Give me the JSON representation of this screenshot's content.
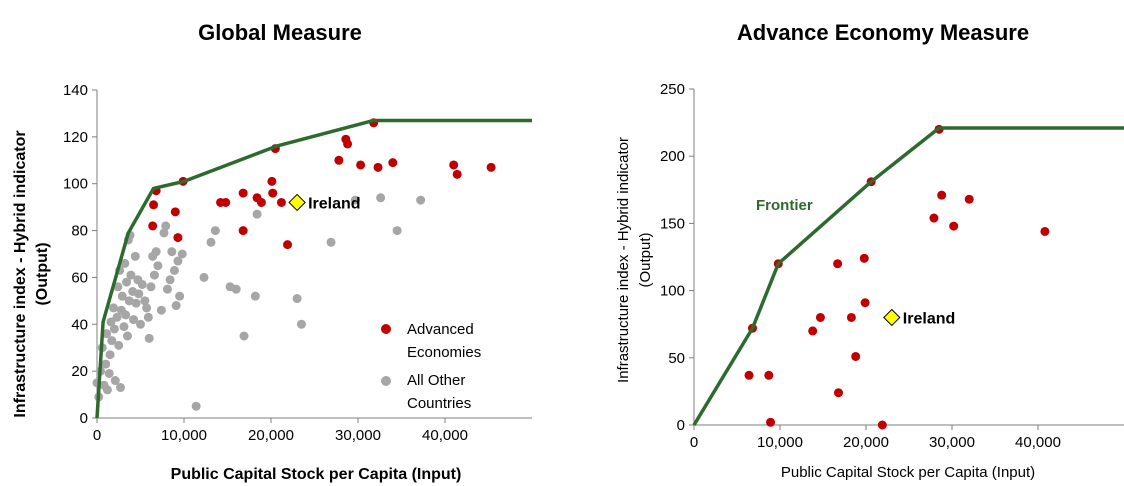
{
  "colors": {
    "advanced": "#c00000",
    "others": "#a6a6a6",
    "frontier": "#2d6a2d",
    "ireland": "#ffff00",
    "axis": "#7f7f7f"
  },
  "chart_data": [
    {
      "type": "scatter",
      "title": "Global Measure",
      "xlabel": "Public Capital Stock per Capita (Input)",
      "ylabel": "Infrastructure index - Hybrid indicator (Output)",
      "xlim": [
        0,
        50000
      ],
      "ylim": [
        0,
        140
      ],
      "xticks": [
        0,
        10000,
        20000,
        30000,
        40000
      ],
      "xtick_labels": [
        "0",
        "10,000",
        "20,000",
        "30,000",
        "40,000"
      ],
      "yticks": [
        0,
        20,
        40,
        60,
        80,
        100,
        120,
        140
      ],
      "ytick_labels": [
        "0",
        "20",
        "40",
        "60",
        "80",
        "100",
        "120",
        "140"
      ],
      "grid": false,
      "legend_position": "bottom-right",
      "series": [
        {
          "name": "Advanced Economies",
          "marker": "circle",
          "color": "#c00000",
          "legend_label": [
            "Advanced",
            "Economies"
          ],
          "points": [
            [
              6500,
              91
            ],
            [
              6800,
              97
            ],
            [
              6400,
              82
            ],
            [
              9000,
              88
            ],
            [
              9300,
              77
            ],
            [
              9900,
              101
            ],
            [
              14200,
              92
            ],
            [
              14800,
              92
            ],
            [
              16800,
              96
            ],
            [
              16800,
              80
            ],
            [
              18400,
              94
            ],
            [
              18900,
              92
            ],
            [
              20100,
              101
            ],
            [
              20200,
              96
            ],
            [
              20500,
              115
            ],
            [
              21200,
              92
            ],
            [
              21900,
              74
            ],
            [
              27800,
              110
            ],
            [
              28600,
              119
            ],
            [
              28800,
              117
            ],
            [
              30300,
              108
            ],
            [
              31800,
              126
            ],
            [
              32300,
              107
            ],
            [
              34000,
              109
            ],
            [
              41000,
              108
            ],
            [
              41400,
              104
            ],
            [
              45300,
              107
            ]
          ]
        },
        {
          "name": "All Other Countries",
          "marker": "circle",
          "color": "#a6a6a6",
          "legend_label": [
            "All Other",
            "Countries"
          ],
          "points": [
            [
              0,
              15
            ],
            [
              200,
              9
            ],
            [
              400,
              20
            ],
            [
              600,
              30
            ],
            [
              800,
              14
            ],
            [
              1000,
              23
            ],
            [
              1100,
              36
            ],
            [
              1200,
              12
            ],
            [
              1400,
              19
            ],
            [
              1500,
              27
            ],
            [
              1600,
              41
            ],
            [
              1700,
              33
            ],
            [
              1900,
              47
            ],
            [
              2000,
              38
            ],
            [
              2100,
              16
            ],
            [
              2300,
              43
            ],
            [
              2400,
              56
            ],
            [
              2500,
              31
            ],
            [
              2600,
              63
            ],
            [
              2700,
              13
            ],
            [
              2800,
              46
            ],
            [
              2900,
              52
            ],
            [
              3100,
              39
            ],
            [
              3200,
              66
            ],
            [
              3300,
              44
            ],
            [
              3400,
              58
            ],
            [
              3500,
              35
            ],
            [
              3600,
              76
            ],
            [
              3700,
              50
            ],
            [
              3800,
              78
            ],
            [
              3900,
              61
            ],
            [
              4100,
              54
            ],
            [
              4200,
              42
            ],
            [
              4400,
              69
            ],
            [
              4500,
              49
            ],
            [
              4700,
              59
            ],
            [
              4800,
              53
            ],
            [
              5000,
              40
            ],
            [
              5200,
              57
            ],
            [
              5500,
              50
            ],
            [
              5700,
              47
            ],
            [
              5900,
              43
            ],
            [
              6000,
              34
            ],
            [
              6200,
              56
            ],
            [
              6400,
              69
            ],
            [
              6600,
              61
            ],
            [
              6800,
              71
            ],
            [
              7000,
              65
            ],
            [
              7400,
              46
            ],
            [
              7700,
              79
            ],
            [
              7900,
              82
            ],
            [
              8100,
              55
            ],
            [
              8400,
              59
            ],
            [
              8600,
              71
            ],
            [
              8900,
              63
            ],
            [
              9100,
              48
            ],
            [
              9300,
              67
            ],
            [
              9500,
              52
            ],
            [
              9800,
              70
            ],
            [
              11400,
              5
            ],
            [
              12300,
              60
            ],
            [
              13100,
              75
            ],
            [
              13600,
              80
            ],
            [
              15300,
              56
            ],
            [
              16000,
              55
            ],
            [
              16900,
              35
            ],
            [
              18200,
              52
            ],
            [
              18400,
              87
            ],
            [
              23000,
              51
            ],
            [
              23500,
              40
            ],
            [
              26900,
              75
            ],
            [
              29700,
              93
            ],
            [
              32600,
              94
            ],
            [
              34500,
              80
            ],
            [
              37200,
              93
            ]
          ]
        }
      ],
      "frontier": [
        [
          0,
          0
        ],
        [
          700,
          41
        ],
        [
          3600,
          79
        ],
        [
          6500,
          98
        ],
        [
          10000,
          101
        ],
        [
          20600,
          116
        ],
        [
          31800,
          127
        ],
        [
          50000,
          127
        ]
      ],
      "annotations": [
        {
          "label": "Ireland",
          "x": 23000,
          "y": 92,
          "marker": "diamond"
        }
      ]
    },
    {
      "type": "scatter",
      "title": "Advance Economy Measure",
      "xlabel": "Public Capital Stock per Capita (Input)",
      "ylabel": "Infrastructure index - Hybrid indicator (Output)",
      "xlim": [
        0,
        50000
      ],
      "ylim": [
        0,
        250
      ],
      "xticks": [
        0,
        10000,
        20000,
        30000,
        40000
      ],
      "xtick_labels": [
        "0",
        "10,000",
        "20,000",
        "30,000",
        "40,000"
      ],
      "yticks": [
        0,
        50,
        100,
        150,
        200,
        250
      ],
      "ytick_labels": [
        "0",
        "50",
        "100",
        "150",
        "200",
        "250"
      ],
      "grid": false,
      "series": [
        {
          "marker": "circle",
          "color": "#c00000",
          "points": [
            [
              6400,
              37
            ],
            [
              6800,
              72
            ],
            [
              8700,
              37
            ],
            [
              8900,
              2
            ],
            [
              9800,
              120
            ],
            [
              13800,
              70
            ],
            [
              14700,
              80
            ],
            [
              16700,
              120
            ],
            [
              16800,
              24
            ],
            [
              18300,
              80
            ],
            [
              18800,
              51
            ],
            [
              19800,
              124
            ],
            [
              19900,
              91
            ],
            [
              20600,
              181
            ],
            [
              21900,
              0
            ],
            [
              27900,
              154
            ],
            [
              28500,
              220
            ],
            [
              28800,
              171
            ],
            [
              30200,
              148
            ],
            [
              32000,
              168
            ],
            [
              40800,
              144
            ]
          ]
        }
      ],
      "frontier": [
        [
          0,
          0
        ],
        [
          6800,
          72
        ],
        [
          9800,
          120
        ],
        [
          20600,
          181
        ],
        [
          28500,
          221
        ],
        [
          50000,
          221
        ]
      ],
      "frontier_label": "Frontier",
      "annotations": [
        {
          "label": "Ireland",
          "x": 23000,
          "y": 80,
          "marker": "diamond"
        }
      ]
    }
  ]
}
